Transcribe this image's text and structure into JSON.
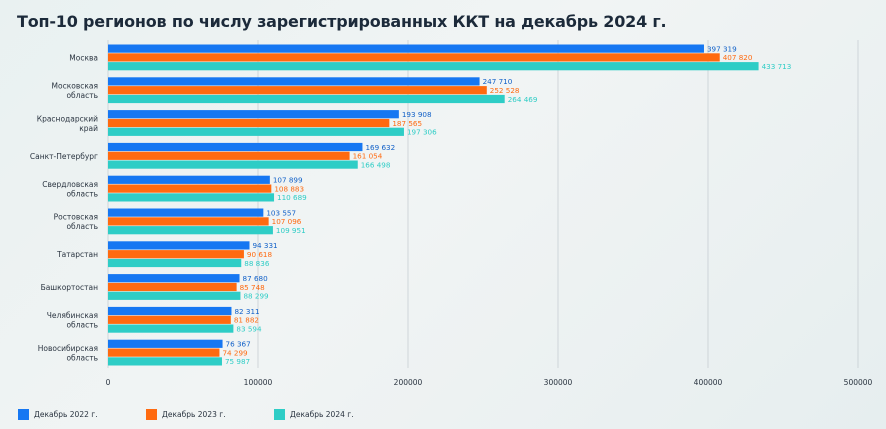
{
  "chart_data": {
    "type": "bar",
    "orientation": "horizontal",
    "title": "Топ-10 регионов по числу зарегистрированных ККТ на декабрь 2024 г.",
    "xlabel": "",
    "ylabel": "",
    "xlim": [
      0,
      500000
    ],
    "x_ticks": [
      "0",
      "100000",
      "200000",
      "300000",
      "400000",
      "500000"
    ],
    "grid": "vertical",
    "legend_position": "bottom-left",
    "categories": [
      [
        "Москва"
      ],
      [
        "Московская",
        "область"
      ],
      [
        "Краснодарский",
        "край"
      ],
      [
        "Санкт-Петербург"
      ],
      [
        "Свердловская",
        "область"
      ],
      [
        "Ростовская",
        "область"
      ],
      [
        "Татарстан"
      ],
      [
        "Башкортостан"
      ],
      [
        "Челябинская",
        "область"
      ],
      [
        "Новосибирская",
        "область"
      ]
    ],
    "series": [
      {
        "name": "Декабрь 2022 г.",
        "color": "#1677f2",
        "values": [
          397319,
          247710,
          193908,
          169632,
          107899,
          103557,
          94331,
          87680,
          82311,
          76367
        ],
        "labels": [
          "397 319",
          "247 710",
          "193 908",
          "169 632",
          "107 899",
          "103 557",
          "94 331",
          "87 680",
          "82 311",
          "76 367"
        ]
      },
      {
        "name": "Декабрь 2023 г.",
        "color": "#ff6a10",
        "values": [
          407820,
          252528,
          187565,
          161054,
          108883,
          107096,
          90618,
          85748,
          81882,
          74299
        ],
        "labels": [
          "407 820",
          "252 528",
          "187 565",
          "161 054",
          "108 883",
          "107 096",
          "90 618",
          "85 748",
          "81 882",
          "74 299"
        ]
      },
      {
        "name": "Декабрь 2024 г.",
        "color": "#2ecdc6",
        "values": [
          433713,
          264469,
          197306,
          166498,
          110689,
          109951,
          88836,
          88299,
          83594,
          75987
        ],
        "labels": [
          "433 713",
          "264 469",
          "197 306",
          "166 498",
          "110 689",
          "109 951",
          "88 836",
          "88 299",
          "83 594",
          "75 987"
        ]
      }
    ]
  },
  "label_colors": [
    "#1060c8",
    "#ff6a10",
    "#2ecdc6"
  ]
}
